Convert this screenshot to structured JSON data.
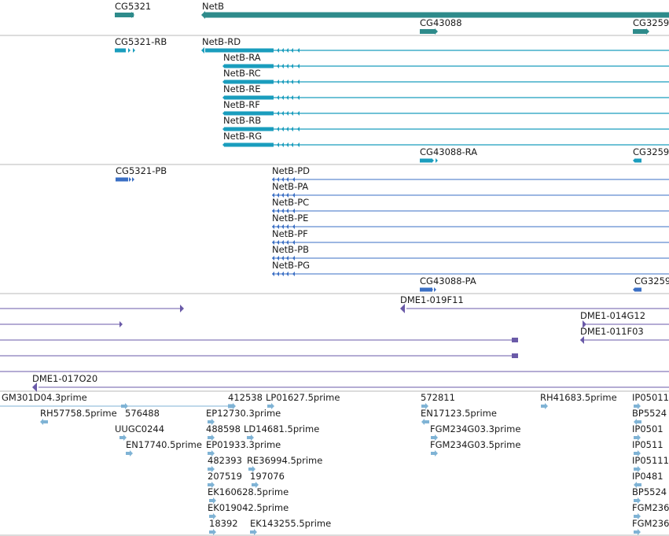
{
  "colors": {
    "gene": "#2e8b8b",
    "transcript": "#1a9dbd",
    "protein": "#3a6fc4",
    "clone": "#6a5aa8",
    "est": "#7fb3d5",
    "separator": "#b8b8b8"
  },
  "tracks": {
    "genes": {
      "cg5321": "CG5321",
      "netb": "NetB",
      "cg43088": "CG43088",
      "cg3259": "CG3259"
    },
    "transcripts": {
      "cg5321_rb": "CG5321-RB",
      "netb_rd": "NetB-RD",
      "netb_ra": "NetB-RA",
      "netb_rc": "NetB-RC",
      "netb_re": "NetB-RE",
      "netb_rf": "NetB-RF",
      "netb_rb": "NetB-RB",
      "netb_rg": "NetB-RG",
      "cg43088_ra": "CG43088-RA",
      "cg3259": "CG3259"
    },
    "proteins": {
      "cg5321_pb": "CG5321-PB",
      "netb_pd": "NetB-PD",
      "netb_pa": "NetB-PA",
      "netb_pc": "NetB-PC",
      "netb_pe": "NetB-PE",
      "netb_pf": "NetB-PF",
      "netb_pb": "NetB-PB",
      "netb_pg": "NetB-PG",
      "cg43088_pa": "CG43088-PA",
      "cg3259": "CG3259"
    },
    "clones": {
      "dme1_019f11": "DME1-019F11",
      "dme1_014g12": "DME1-014G12",
      "dme1_011f03": "DME1-011F03",
      "dme1_017o20": "DME1-017O20"
    },
    "ests": {
      "gm301d04": "GM301D04.3prime",
      "n412538": "412538",
      "lp01627": "LP01627.5prime",
      "n572811": "572811",
      "rh41683": "RH41683.5prime",
      "ip05011": "IP05011",
      "rh57758": "RH57758.5prime",
      "n576488": "576488",
      "ep12730": "EP12730.3prime",
      "en17123": "EN17123.5prime",
      "bp5524a": "BP5524",
      "uugc0244": "UUGC0244",
      "n488598": "488598",
      "ld14681": "LD14681.5prime",
      "fgm234g03_3": "FGM234G03.3prime",
      "ip0501b": "IP0501",
      "en17740": "EN17740.5prime",
      "ep01933": "EP01933.3prime",
      "fgm234g03_5": "FGM234G03.5prime",
      "ip0511": "IP0511",
      "n482393": "482393",
      "re36994": "RE36994.5prime",
      "ip05111": "IP05111",
      "n207519": "207519",
      "n197076": "197076",
      "ip0481": "IP0481",
      "ek160628": "EK160628.5prime",
      "bp5524b": "BP5524",
      "ek019042": "EK019042.5prime",
      "fgm236a": "FGM236",
      "n18392": "18392",
      "ek143255": "EK143255.5prime",
      "fgm236b": "FGM236"
    }
  }
}
